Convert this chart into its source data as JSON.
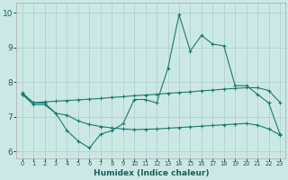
{
  "x": [
    0,
    1,
    2,
    3,
    4,
    5,
    6,
    7,
    8,
    9,
    10,
    11,
    12,
    13,
    14,
    15,
    16,
    17,
    18,
    19,
    20,
    21,
    22,
    23
  ],
  "line1": [
    7.7,
    7.4,
    7.4,
    7.1,
    6.6,
    6.3,
    6.1,
    6.5,
    6.6,
    6.8,
    7.5,
    7.5,
    7.4,
    8.4,
    9.95,
    8.9,
    9.35,
    9.1,
    9.05,
    7.9,
    7.9,
    7.65,
    7.4,
    6.5
  ],
  "line2": [
    7.65,
    7.41,
    7.43,
    7.45,
    7.47,
    7.49,
    7.51,
    7.53,
    7.56,
    7.58,
    7.61,
    7.63,
    7.65,
    7.68,
    7.7,
    7.72,
    7.75,
    7.77,
    7.8,
    7.82,
    7.84,
    7.84,
    7.76,
    7.42
  ],
  "line3": [
    7.65,
    7.35,
    7.35,
    7.1,
    7.05,
    6.88,
    6.78,
    6.72,
    6.68,
    6.65,
    6.63,
    6.64,
    6.65,
    6.67,
    6.69,
    6.71,
    6.73,
    6.75,
    6.77,
    6.79,
    6.81,
    6.76,
    6.65,
    6.48
  ],
  "color": "#1a7a6e",
  "bg_color": "#cce8e5",
  "grid_color": "#aacfcc",
  "xlabel": "Humidex (Indice chaleur)",
  "ylim": [
    5.8,
    10.3
  ],
  "xlim": [
    -0.5,
    23.5
  ],
  "xticks": [
    0,
    1,
    2,
    3,
    4,
    5,
    6,
    7,
    8,
    9,
    10,
    11,
    12,
    13,
    14,
    15,
    16,
    17,
    18,
    19,
    20,
    21,
    22,
    23
  ],
  "yticks": [
    6,
    7,
    8,
    9,
    10
  ],
  "xlabel_fontsize": 6.5,
  "xlabel_fontweight": "bold",
  "xtick_fontsize": 4.8,
  "ytick_fontsize": 6.5
}
